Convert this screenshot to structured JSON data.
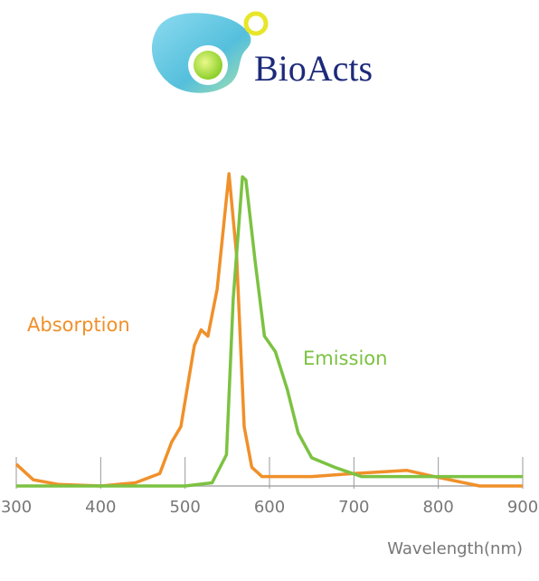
{
  "logo": {
    "text": "BioActs"
  },
  "chart_data": {
    "type": "line",
    "x_label": "Wavelength(nm)",
    "xlim": [
      300,
      900
    ],
    "xticks": [
      300,
      400,
      500,
      600,
      700,
      800,
      900
    ],
    "ylim": [
      0,
      1
    ],
    "series": [
      {
        "name": "Absorption",
        "color": "#f0902a",
        "x": [
          300,
          320,
          350,
          400,
          441,
          470,
          484,
          495,
          511,
          519,
          527,
          538,
          552,
          561,
          570,
          579,
          591,
          650,
          700,
          763,
          795,
          849,
          900
        ],
        "values": [
          0.07,
          0.02,
          0.005,
          0.0,
          0.01,
          0.04,
          0.14,
          0.19,
          0.45,
          0.5,
          0.48,
          0.63,
          1.0,
          0.74,
          0.19,
          0.06,
          0.03,
          0.03,
          0.04,
          0.05,
          0.03,
          0.0,
          0.0
        ]
      },
      {
        "name": "Emission",
        "color": "#7cc242",
        "x": [
          300,
          400,
          500,
          532,
          549,
          557,
          568,
          572,
          583,
          594,
          607,
          621,
          634,
          650,
          677,
          709,
          800,
          900
        ],
        "values": [
          0.0,
          0.0,
          0.0,
          0.01,
          0.1,
          0.6,
          0.99,
          0.98,
          0.72,
          0.48,
          0.43,
          0.31,
          0.17,
          0.09,
          0.06,
          0.03,
          0.03,
          0.03
        ]
      }
    ]
  }
}
